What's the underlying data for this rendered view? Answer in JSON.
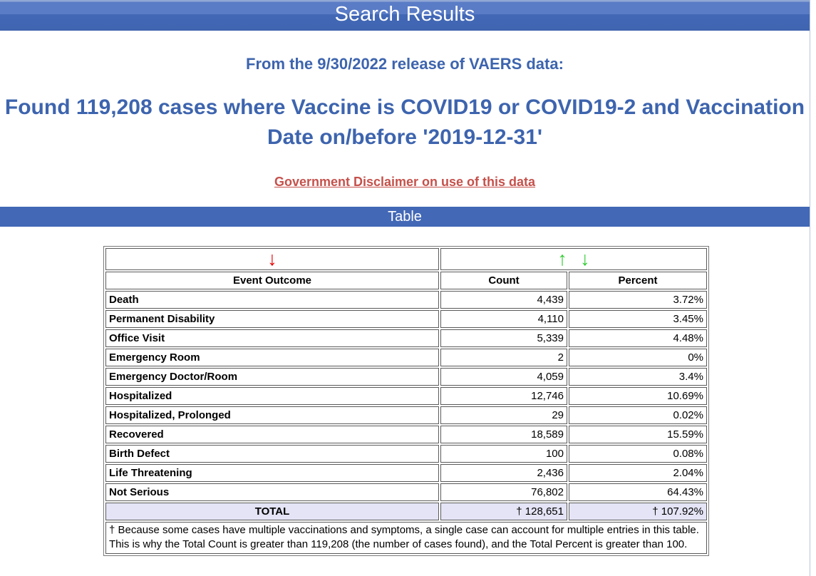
{
  "header": {
    "title": "Search Results",
    "subtitle": "From the 9/30/2022 release of VAERS data:",
    "heading": "Found 119,208 cases where Vaccine is COVID19 or COVID19-2 and Vaccination Date on/before '2019-12-31'",
    "disclaimer_link": "Government Disclaimer on use of this data",
    "section_title": "Table"
  },
  "sort": {
    "outcome_desc_icon": "↓",
    "value_asc_icon": "↑",
    "value_desc_icon": "↓"
  },
  "table": {
    "headers": [
      "Event Outcome",
      "Count",
      "Percent"
    ],
    "rows": [
      {
        "outcome": "Death",
        "count": "4,439",
        "percent": "3.72%"
      },
      {
        "outcome": "Permanent Disability",
        "count": "4,110",
        "percent": "3.45%"
      },
      {
        "outcome": "Office Visit",
        "count": "5,339",
        "percent": "4.48%"
      },
      {
        "outcome": "Emergency Room",
        "count": "2",
        "percent": "0%"
      },
      {
        "outcome": "Emergency Doctor/Room",
        "count": "4,059",
        "percent": "3.4%"
      },
      {
        "outcome": "Hospitalized",
        "count": "12,746",
        "percent": "10.69%"
      },
      {
        "outcome": "Hospitalized, Prolonged",
        "count": "29",
        "percent": "0.02%"
      },
      {
        "outcome": "Recovered",
        "count": "18,589",
        "percent": "15.59%"
      },
      {
        "outcome": "Birth Defect",
        "count": "100",
        "percent": "0.08%"
      },
      {
        "outcome": "Life Threatening",
        "count": "2,436",
        "percent": "2.04%"
      },
      {
        "outcome": "Not Serious",
        "count": "76,802",
        "percent": "64.43%"
      }
    ],
    "total": {
      "label": "TOTAL",
      "count": "† 128,651",
      "percent": "† 107.92%"
    },
    "footnote": "† Because some cases have multiple vaccinations and symptoms, a single case can account for multiple entries in this table. This is why the Total Count is greater than 119,208 (the number of cases found), and the Total Percent is greater than 100."
  },
  "colors": {
    "title_bar_top": "#5a7cc6",
    "title_bar_bottom": "#4268b6",
    "section_bar": "#4268b6",
    "heading_text": "#3d64ae",
    "disclaimer_link": "#c5514b",
    "sort_arrow_red": "#e60000",
    "sort_arrow_green": "#33cc33",
    "total_row_bg": "#e4e4f6"
  }
}
